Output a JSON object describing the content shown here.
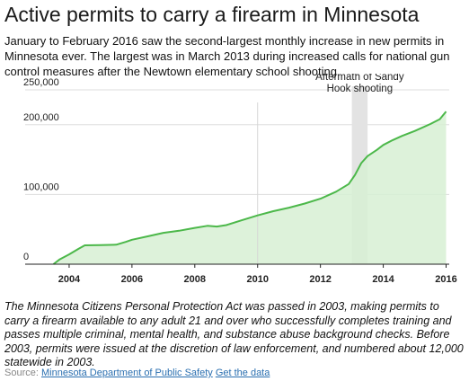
{
  "title": "Active permits to carry a firearm in Minnesota",
  "intro": "January to February 2016 saw the second-largest monthly increase in new permits in Minnesota ever. The largest was in March 2013 during increased calls for national gun control measures after the Newtown elementary school shooting.",
  "note": "The Minnesota Citizens Personal Protection Act was passed in 2003, making permits to carry a firearm available to any adult 21 and over who successfully completes training and passes multiple criminal, mental health, and substance abuse background checks. Before 2003, permits were issued at the discretion of law enforcement, and numbered about 12,000 statewide in 2003.",
  "source": {
    "label": "Source:",
    "link_text": "Minnesota Department of Public Safety",
    "data_link_text": "Get the data"
  },
  "colors": {
    "line": "#4cb84a",
    "area": "#d7f0d4",
    "highlight": "#e3e3e3",
    "reference_line": "#d6d6d6",
    "grid": "#dddddd",
    "axis": "#222222"
  },
  "chart_data": {
    "type": "area",
    "title": "",
    "xlabel": "",
    "ylabel": "",
    "xlim": [
      2002.6,
      2016.1
    ],
    "ylim": [
      0,
      250000
    ],
    "grid": true,
    "yticks": [
      0,
      100000,
      200000,
      250000
    ],
    "ytick_labels": [
      "0",
      "100,000",
      "200,000",
      "250,000"
    ],
    "xticks": [
      2004,
      2006,
      2008,
      2010,
      2012,
      2014,
      2016
    ],
    "xtick_labels": [
      "2004",
      "2006",
      "2008",
      "2010",
      "2012",
      "2014",
      "2016"
    ],
    "reference_line": {
      "x": 2010.0
    },
    "highlight": {
      "x_start": 2013.0,
      "x_end": 2013.5,
      "label_lines": [
        "Aftermath of Sandy",
        "Hook shooting"
      ]
    },
    "series": [
      {
        "x": [
          2003.5,
          2003.7,
          2004.0,
          2004.3,
          2004.5,
          2005.0,
          2005.5,
          2005.8,
          2006.0,
          2006.5,
          2007.0,
          2007.5,
          2008.0,
          2008.4,
          2008.7,
          2009.0,
          2009.5,
          2010.0,
          2010.5,
          2011.0,
          2011.5,
          2012.0,
          2012.5,
          2012.9,
          2013.1,
          2013.3,
          2013.5,
          2013.8,
          2014.0,
          2014.3,
          2014.6,
          2015.0,
          2015.5,
          2015.8,
          2016.0
        ],
        "y": [
          0,
          7000,
          14000,
          22000,
          27000,
          27500,
          28000,
          32000,
          35000,
          40000,
          45000,
          48000,
          52000,
          55000,
          54000,
          56000,
          63000,
          70000,
          76000,
          81000,
          87000,
          94000,
          104000,
          115000,
          128000,
          145000,
          155000,
          164000,
          171000,
          178000,
          184000,
          191000,
          201000,
          208000,
          219000
        ]
      }
    ]
  }
}
